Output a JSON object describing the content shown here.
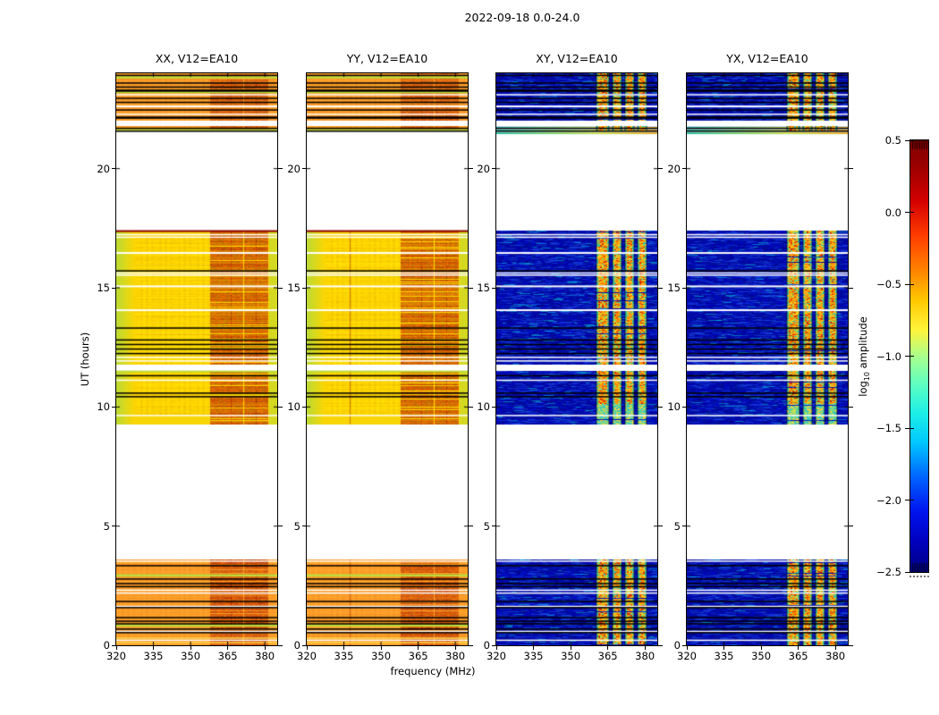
{
  "chart_data": {
    "type": "heatmap",
    "title": "2022-09-18 0.0-24.0",
    "xlabel": "frequency (MHz)",
    "ylabel": "UT (hours)",
    "x_range_mhz": [
      320,
      385
    ],
    "y_range_hours": [
      0,
      24
    ],
    "x_ticks": [
      "320",
      "335",
      "350",
      "365",
      "380"
    ],
    "y_ticks": [
      "0",
      "5",
      "10",
      "15",
      "20"
    ],
    "panels": [
      {
        "title": "XX, V12=EA10",
        "pol": "XX",
        "kind": "parallel",
        "seed": 11
      },
      {
        "title": "YY, V12=EA10",
        "pol": "YY",
        "kind": "parallel",
        "seed": 22,
        "extra_vline": {
          "mhz": 337.3,
          "color": "#b43200"
        }
      },
      {
        "title": "XY, V12=EA10",
        "pol": "XY",
        "kind": "cross",
        "seed": 33
      },
      {
        "title": "YX, V12=EA10",
        "pol": "YX",
        "kind": "cross",
        "seed": 44
      }
    ],
    "colorbar": {
      "label_prefix": "log",
      "label_sub": "10",
      "label_suffix": " amplitude",
      "ticks": [
        "0.5",
        "0.0",
        "-0.5",
        "-1.0",
        "-1.5",
        "-2.0",
        "-2.5"
      ],
      "vmax": 0.5,
      "vmin": -2.5,
      "colormap": "jet",
      "jet_stops": [
        [
          0.0,
          "#7f0000"
        ],
        [
          0.06,
          "#9c0000"
        ],
        [
          0.14,
          "#d40000"
        ],
        [
          0.22,
          "#ff3c00"
        ],
        [
          0.3,
          "#ff8200"
        ],
        [
          0.37,
          "#ffc800"
        ],
        [
          0.44,
          "#fff53c"
        ],
        [
          0.5,
          "#aaff8c"
        ],
        [
          0.56,
          "#64ffbe"
        ],
        [
          0.63,
          "#1ef0e6"
        ],
        [
          0.7,
          "#00c8ff"
        ],
        [
          0.78,
          "#0064ff"
        ],
        [
          0.86,
          "#0014f0"
        ],
        [
          0.93,
          "#0000be"
        ],
        [
          1.0,
          "#000082"
        ]
      ]
    },
    "time_bands": [
      {
        "h0": 21.55,
        "h1": 24.0,
        "warm": "band_orange",
        "rfi_strength": 0.85,
        "cross_grad_rows": [
          21.52,
          21.86
        ]
      },
      {
        "h0": 11.78,
        "h1": 17.4,
        "warm": "band_yellow",
        "green_edges": true,
        "rfi_strength": 1.0
      },
      {
        "h0": 9.28,
        "h1": 11.53,
        "warm": "band_yellow",
        "green_edges": true,
        "rfi_strength": 1.0,
        "cool_below_h": 10.15
      },
      {
        "h0": 0.0,
        "h1": 3.6,
        "warm": "band_orange",
        "rfi_strength": 1.0
      }
    ],
    "flag_lines": {
      "black": [
        [
          23.91,
          1.5
        ],
        [
          23.59,
          1.5
        ],
        [
          23.42,
          1.5
        ],
        [
          23.27,
          2.5
        ],
        [
          22.95,
          1.5
        ],
        [
          22.78,
          1.5
        ],
        [
          22.46,
          1.5
        ],
        [
          22.14,
          2.5
        ],
        [
          21.69,
          1.5
        ],
        [
          21.57,
          1.5
        ],
        [
          15.71,
          1.5
        ],
        [
          13.31,
          1.5
        ],
        [
          12.81,
          1.5
        ],
        [
          12.62,
          1.5
        ],
        [
          12.43,
          1.5
        ],
        [
          12.24,
          1.5
        ],
        [
          11.31,
          1.5
        ],
        [
          10.58,
          1.5
        ],
        [
          10.43,
          1.5
        ],
        [
          3.34,
          1.5
        ],
        [
          2.78,
          1.5
        ],
        [
          2.59,
          1.5
        ],
        [
          2.46,
          1.5
        ],
        [
          1.84,
          1.5
        ],
        [
          1.58,
          1.5
        ],
        [
          1.16,
          1.5
        ],
        [
          1.01,
          1.5
        ],
        [
          0.9,
          1.5
        ],
        [
          0.68,
          1.5
        ],
        [
          0.53,
          1.5
        ]
      ],
      "white": [
        [
          23.1,
          1.5
        ],
        [
          22.61,
          2
        ],
        [
          22.28,
          1.5
        ],
        [
          21.9,
          6
        ],
        [
          17.23,
          1.5
        ],
        [
          17.12,
          1.5
        ],
        [
          16.46,
          2
        ],
        [
          15.62,
          1.5
        ],
        [
          15.53,
          1.5
        ],
        [
          15.06,
          2
        ],
        [
          14.06,
          2
        ],
        [
          12.08,
          1.5
        ],
        [
          11.93,
          1.5
        ],
        [
          11.12,
          1.5
        ],
        [
          9.64,
          1.5
        ],
        [
          3.53,
          1.5
        ],
        [
          2.31,
          1.5
        ],
        [
          2.19,
          1.5
        ],
        [
          1.63,
          1.5
        ],
        [
          0.58,
          1.5
        ],
        [
          0.21,
          1.5
        ]
      ],
      "green_warm": [
        [
          23.83,
          2.5
        ],
        [
          23.21,
          2.5
        ],
        [
          21.61,
          2.5
        ],
        [
          11.49,
          2
        ],
        [
          2.93,
          2.5
        ],
        [
          0.83,
          2.5
        ]
      ],
      "yellow_warm": [
        [
          0.3,
          1.5
        ],
        [
          0.11,
          1.5
        ]
      ],
      "red_warm": [
        [
          17.38,
          2
        ]
      ]
    },
    "rfi": {
      "warm_columns": [
        [
          358.0,
          365.9
        ],
        [
          366.4,
          371.0
        ],
        [
          371.5,
          376.0
        ],
        [
          376.5,
          381.2
        ]
      ],
      "cross_blocks": [
        [
          360.6,
          365.6
        ],
        [
          366.9,
          370.6
        ],
        [
          372.0,
          375.6
        ],
        [
          377.0,
          380.7
        ]
      ]
    },
    "palette": {
      "warm": {
        "band_orange": "#ff9c28",
        "band_yellow": "#ffd400",
        "green_edge": "#b0dc3c",
        "rfi_shades": [
          "#8c1400",
          "#b42800",
          "#d24600",
          "#e66400"
        ],
        "flag_green": "#bcdc3c",
        "flag_yellow": "#ffd850",
        "flag_red": "#8b0000"
      },
      "cold": {
        "base_blue": "#0000a0",
        "noise_blue": "rgba(25,70,225,0.6)",
        "noise_cyan": "rgba(0,200,215,0.55)",
        "block_warm": [
          "#d23000",
          "#ff8c00",
          "#ffc81e",
          "#a0dc50",
          "#3cc8a0"
        ],
        "block_cool": [
          "#2ec8c8",
          "#64d29b",
          "#b4e05a",
          "#ffd23c"
        ],
        "grad_stops": [
          "#28c0a8",
          "#80d468",
          "#ccdf4e",
          "#f0aa28"
        ]
      }
    }
  }
}
